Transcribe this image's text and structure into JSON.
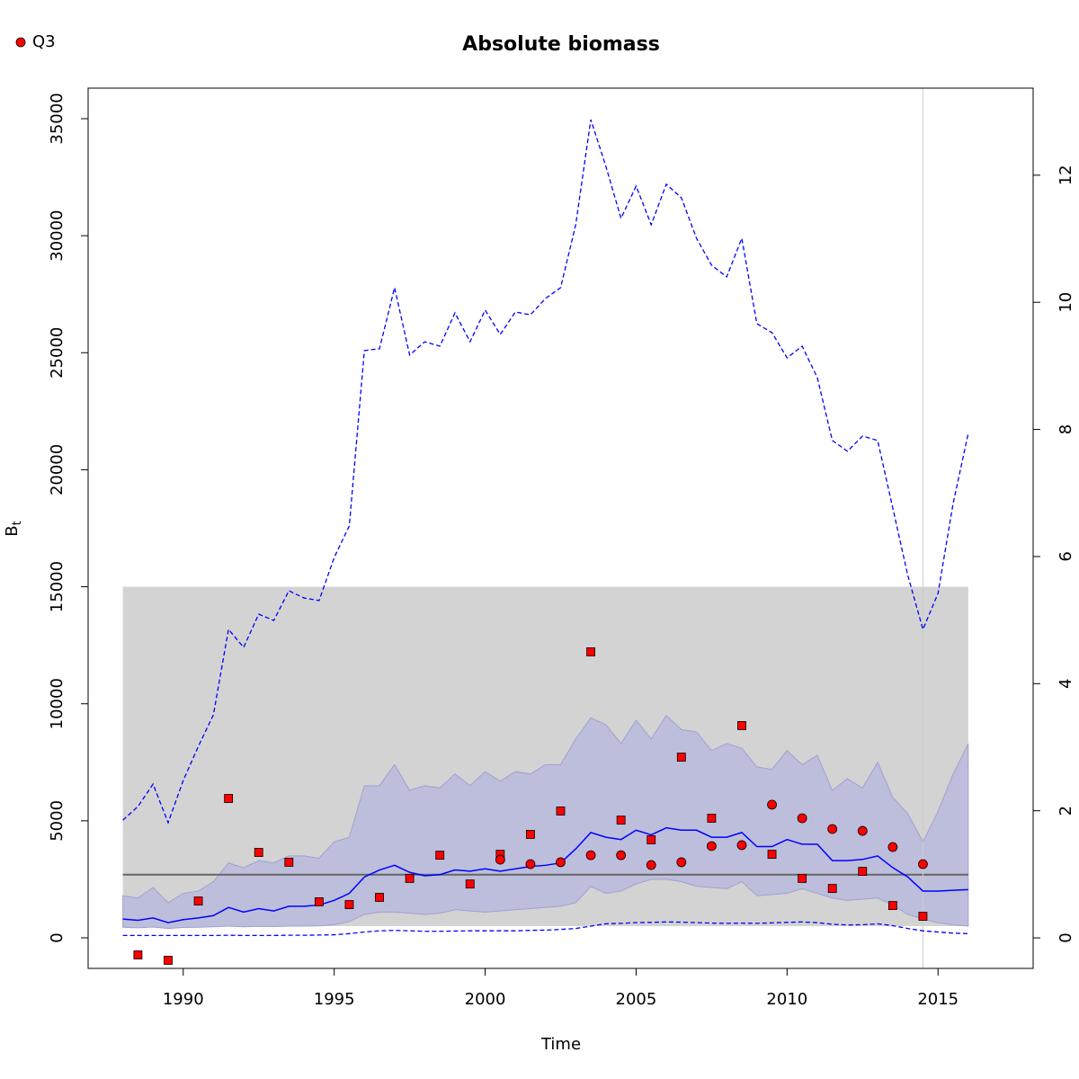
{
  "chart_data": {
    "type": "line",
    "title": "Absolute biomass",
    "xlabel": "Time",
    "ylabel": {
      "main": "B",
      "sub": "t"
    },
    "xlim": [
      1986.85,
      2018.15
    ],
    "ylim": [
      -1306,
      36306
    ],
    "y2lim": [
      -0.48,
      13.37
    ],
    "xticks": [
      1990,
      1995,
      2000,
      2005,
      2010,
      2015
    ],
    "yticks": [
      0,
      5000,
      10000,
      15000,
      20000,
      25000,
      30000,
      35000
    ],
    "y2ticks": [
      0,
      2,
      4,
      6,
      8,
      10,
      12
    ],
    "legend": "top-left",
    "band": {
      "color": "#d3d3d3",
      "x": [
        1988,
        2016
      ],
      "lower": 500,
      "upper": 15000
    },
    "hline": {
      "value": 2700,
      "color": "#666666"
    },
    "vline": {
      "value": 2014.5,
      "color": "#cccccc"
    },
    "x": [
      1988,
      1988.5,
      1989,
      1989.5,
      1990,
      1990.5,
      1991,
      1991.5,
      1992,
      1992.5,
      1993,
      1993.5,
      1994,
      1994.5,
      1995,
      1995.5,
      1996,
      1996.5,
      1997,
      1997.5,
      1998,
      1998.5,
      1999,
      1999.5,
      2000,
      2000.5,
      2001,
      2001.5,
      2002,
      2002.5,
      2003,
      2003.5,
      2004,
      2004.5,
      2005,
      2005.5,
      2006,
      2006.5,
      2007,
      2007.5,
      2008,
      2008.5,
      2009,
      2009.5,
      2010,
      2010.5,
      2011,
      2011.5,
      2012,
      2012.5,
      2013,
      2013.5,
      2014,
      2014.5,
      2015,
      2015.5,
      2016
    ],
    "outer_ci": {
      "color": "#0000ff",
      "upper": [
        5030,
        5610,
        6570,
        4920,
        6720,
        8180,
        9530,
        13180,
        12410,
        13830,
        13560,
        14830,
        14520,
        14410,
        16250,
        17600,
        25090,
        25170,
        27780,
        24900,
        25470,
        25280,
        26700,
        25470,
        26820,
        25780,
        26740,
        26620,
        27320,
        27780,
        30470,
        34960,
        32960,
        30740,
        32120,
        30470,
        32200,
        31620,
        29890,
        28740,
        28240,
        29890,
        26240,
        25860,
        24780,
        25280,
        23940,
        21250,
        20790,
        21440,
        21250,
        18370,
        15480,
        13180,
        14720,
        18560,
        21550
      ],
      "lower": [
        100,
        100,
        100,
        100,
        100,
        100,
        100,
        110,
        100,
        100,
        100,
        110,
        110,
        120,
        130,
        180,
        250,
        300,
        320,
        300,
        280,
        280,
        290,
        300,
        300,
        300,
        300,
        320,
        330,
        360,
        400,
        500,
        600,
        620,
        650,
        660,
        680,
        670,
        650,
        630,
        620,
        630,
        620,
        640,
        660,
        680,
        650,
        580,
        550,
        560,
        600,
        520,
        400,
        300,
        250,
        200,
        180
      ]
    },
    "ci": {
      "color": "#bdbedb",
      "upper": [
        1800,
        1700,
        2150,
        1500,
        1900,
        2000,
        2400,
        3200,
        3000,
        3300,
        3200,
        3500,
        3500,
        3400,
        4100,
        4300,
        6500,
        6500,
        7400,
        6300,
        6500,
        6400,
        7000,
        6500,
        7100,
        6700,
        7100,
        7000,
        7400,
        7400,
        8500,
        9400,
        9100,
        8300,
        9300,
        8500,
        9500,
        8900,
        8800,
        8000,
        8300,
        8100,
        7300,
        7200,
        8000,
        7400,
        7800,
        6300,
        6800,
        6400,
        7500,
        6000,
        5300,
        4100,
        5400,
        7000,
        8300
      ],
      "lower": [
        450,
        430,
        460,
        400,
        440,
        450,
        470,
        500,
        470,
        490,
        480,
        500,
        500,
        510,
        560,
        700,
        1000,
        1100,
        1100,
        1050,
        1000,
        1050,
        1200,
        1150,
        1100,
        1150,
        1200,
        1250,
        1300,
        1350,
        1500,
        2200,
        1900,
        2000,
        2300,
        2500,
        2500,
        2400,
        2200,
        2150,
        2100,
        2400,
        1800,
        1850,
        1900,
        2100,
        1900,
        1700,
        1600,
        1650,
        1700,
        1400,
        1000,
        800,
        650,
        550,
        500
      ]
    },
    "estimate": {
      "color": "#0000ff",
      "values": [
        800,
        750,
        850,
        650,
        780,
        850,
        950,
        1300,
        1100,
        1250,
        1150,
        1350,
        1350,
        1400,
        1600,
        1900,
        2600,
        2900,
        3100,
        2800,
        2650,
        2700,
        2900,
        2850,
        2950,
        2850,
        2950,
        3050,
        3100,
        3200,
        3800,
        4500,
        4300,
        4200,
        4600,
        4400,
        4700,
        4600,
        4600,
        4300,
        4300,
        4500,
        3900,
        3900,
        4200,
        4000,
        4000,
        3300,
        3300,
        3350,
        3500,
        3000,
        2600,
        2000,
        2000,
        2030,
        2060
      ]
    },
    "points": [
      {
        "shape": "square",
        "color": "#ff0000",
        "x": [
          1988.5,
          1989.5,
          1990.5,
          1991.5,
          1992.5,
          1993.5,
          1994.5,
          1995.5,
          1996.5,
          1997.5,
          1998.5,
          1999.5,
          2000.5,
          2001.5,
          2002.5,
          2003.5,
          2004.5,
          2005.5,
          2006.5,
          2007.5,
          2008.5,
          2009.5,
          2010.5,
          2011.5,
          2012.5,
          2013.5,
          2014.5
        ],
        "values": [
          -730,
          -960,
          1575,
          5955,
          3650,
          3230,
          1540,
          1420,
          1730,
          2540,
          3530,
          2300,
          3570,
          4420,
          5420,
          12220,
          5030,
          4190,
          7720,
          5110,
          9070,
          3570,
          2540,
          2110,
          2840,
          1380,
          920
        ]
      },
      {
        "name": "Q3",
        "shape": "circle",
        "color": "#ff0000",
        "x": [
          2000.5,
          2001.5,
          2002.5,
          2003.5,
          2004.5,
          2005.5,
          2006.5,
          2007.5,
          2008.5,
          2009.5,
          2010.5,
          2011.5,
          2012.5,
          2013.5,
          2014.5
        ],
        "values": [
          3340,
          3150,
          3230,
          3530,
          3530,
          3110,
          3230,
          3920,
          3960,
          5690,
          5110,
          4650,
          4570,
          3880,
          3150
        ]
      }
    ]
  }
}
